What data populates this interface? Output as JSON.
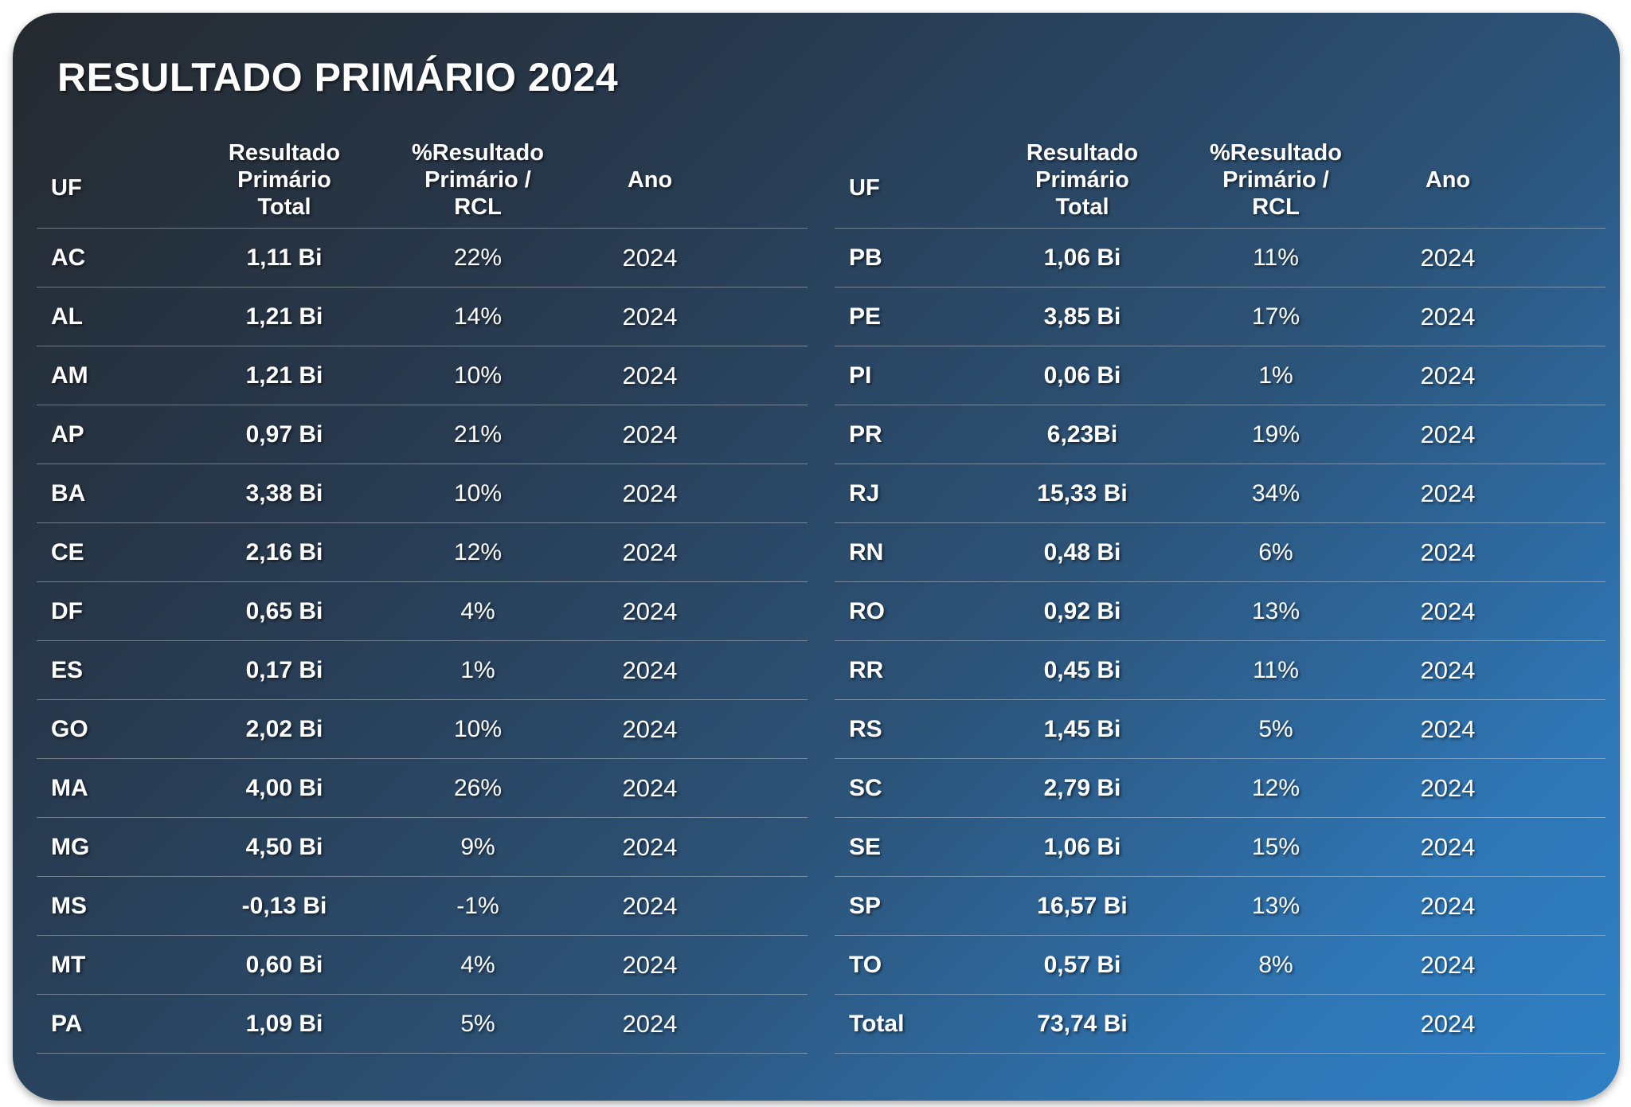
{
  "title": "RESULTADO PRIMÁRIO 2024",
  "headers": {
    "uf": "UF",
    "total": "Resultado\nPrimário\nTotal",
    "pct": "%Resultado\nPrimário /\nRCL",
    "ano": "Ano"
  },
  "left_rows": [
    {
      "uf": "AC",
      "total": "1,11 Bi",
      "pct": "22%",
      "ano": "2024"
    },
    {
      "uf": "AL",
      "total": "1,21 Bi",
      "pct": "14%",
      "ano": "2024"
    },
    {
      "uf": "AM",
      "total": "1,21 Bi",
      "pct": "10%",
      "ano": "2024"
    },
    {
      "uf": "AP",
      "total": "0,97 Bi",
      "pct": "21%",
      "ano": "2024"
    },
    {
      "uf": "BA",
      "total": "3,38 Bi",
      "pct": "10%",
      "ano": "2024"
    },
    {
      "uf": "CE",
      "total": "2,16 Bi",
      "pct": "12%",
      "ano": "2024"
    },
    {
      "uf": "DF",
      "total": "0,65 Bi",
      "pct": "4%",
      "ano": "2024"
    },
    {
      "uf": "ES",
      "total": "0,17 Bi",
      "pct": "1%",
      "ano": "2024"
    },
    {
      "uf": "GO",
      "total": "2,02 Bi",
      "pct": "10%",
      "ano": "2024"
    },
    {
      "uf": "MA",
      "total": "4,00 Bi",
      "pct": "26%",
      "ano": "2024"
    },
    {
      "uf": "MG",
      "total": "4,50 Bi",
      "pct": "9%",
      "ano": "2024"
    },
    {
      "uf": "MS",
      "total": "-0,13 Bi",
      "pct": "-1%",
      "ano": "2024"
    },
    {
      "uf": "MT",
      "total": "0,60 Bi",
      "pct": "4%",
      "ano": "2024"
    },
    {
      "uf": "PA",
      "total": "1,09 Bi",
      "pct": "5%",
      "ano": "2024"
    }
  ],
  "right_rows": [
    {
      "uf": "PB",
      "total": "1,06 Bi",
      "pct": "11%",
      "ano": "2024"
    },
    {
      "uf": "PE",
      "total": "3,85 Bi",
      "pct": "17%",
      "ano": "2024"
    },
    {
      "uf": "PI",
      "total": "0,06 Bi",
      "pct": "1%",
      "ano": "2024"
    },
    {
      "uf": "PR",
      "total": "6,23Bi",
      "pct": "19%",
      "ano": "2024"
    },
    {
      "uf": "RJ",
      "total": "15,33 Bi",
      "pct": "34%",
      "ano": "2024"
    },
    {
      "uf": "RN",
      "total": "0,48 Bi",
      "pct": "6%",
      "ano": "2024"
    },
    {
      "uf": "RO",
      "total": "0,92 Bi",
      "pct": "13%",
      "ano": "2024"
    },
    {
      "uf": "RR",
      "total": "0,45 Bi",
      "pct": "11%",
      "ano": "2024"
    },
    {
      "uf": "RS",
      "total": "1,45 Bi",
      "pct": "5%",
      "ano": "2024"
    },
    {
      "uf": "SC",
      "total": "2,79 Bi",
      "pct": "12%",
      "ano": "2024"
    },
    {
      "uf": "SE",
      "total": "1,06 Bi",
      "pct": "15%",
      "ano": "2024"
    },
    {
      "uf": "SP",
      "total": "16,57 Bi",
      "pct": "13%",
      "ano": "2024"
    },
    {
      "uf": "TO",
      "total": "0,57 Bi",
      "pct": "8%",
      "ano": "2024"
    },
    {
      "uf": "Total",
      "total": "73,74 Bi",
      "pct": "",
      "ano": "2024"
    }
  ]
}
